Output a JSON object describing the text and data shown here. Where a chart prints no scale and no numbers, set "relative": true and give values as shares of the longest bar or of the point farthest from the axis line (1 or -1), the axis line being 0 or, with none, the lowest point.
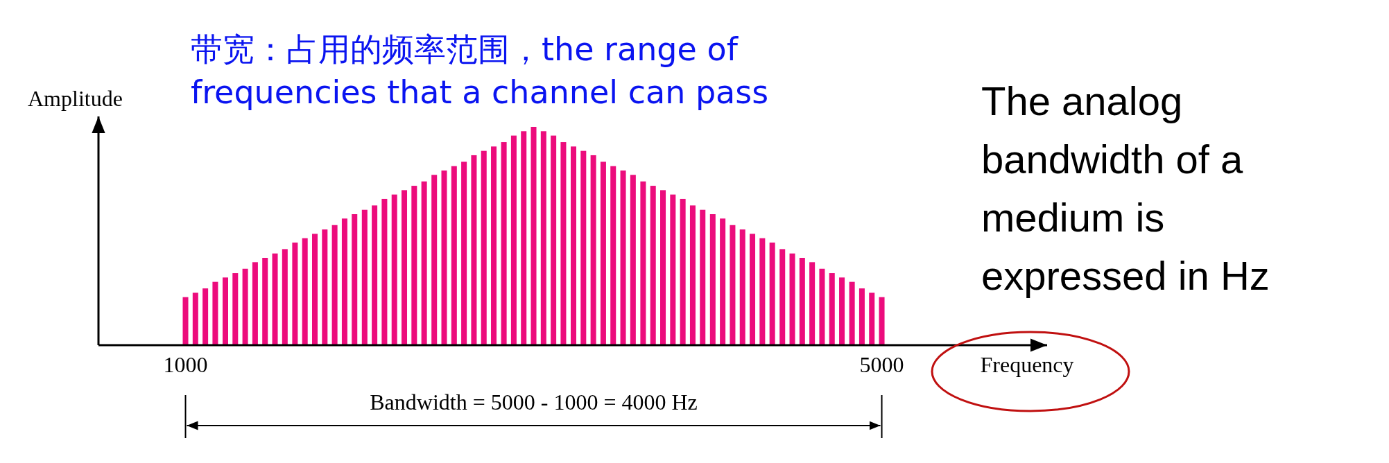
{
  "chart_data": {
    "type": "bar",
    "title": "带宽：占用的频率范围，the range of frequencies that a channel can pass",
    "xlabel": "Frequency",
    "ylabel": "Amplitude",
    "relative": true,
    "color": "#ec0c7c",
    "x": [
      1000,
      1057,
      1114,
      1171,
      1229,
      1286,
      1343,
      1400,
      1457,
      1514,
      1571,
      1629,
      1686,
      1743,
      1800,
      1857,
      1914,
      1971,
      2029,
      2086,
      2143,
      2200,
      2257,
      2314,
      2371,
      2429,
      2486,
      2543,
      2600,
      2657,
      2714,
      2771,
      2829,
      2886,
      2943,
      3000,
      3057,
      3114,
      3171,
      3229,
      3286,
      3343,
      3400,
      3457,
      3514,
      3571,
      3629,
      3686,
      3743,
      3800,
      3857,
      3914,
      3971,
      4029,
      4086,
      4143,
      4200,
      4257,
      4314,
      4371,
      4429,
      4486,
      4543,
      4600,
      4657,
      4714,
      4771,
      4829,
      4886,
      4943,
      5000
    ],
    "values": [
      0.22,
      0.24,
      0.26,
      0.29,
      0.31,
      0.33,
      0.35,
      0.38,
      0.4,
      0.42,
      0.44,
      0.47,
      0.49,
      0.51,
      0.53,
      0.55,
      0.58,
      0.6,
      0.62,
      0.64,
      0.67,
      0.69,
      0.71,
      0.73,
      0.75,
      0.78,
      0.8,
      0.82,
      0.84,
      0.87,
      0.89,
      0.91,
      0.93,
      0.96,
      0.98,
      1,
      0.98,
      0.96,
      0.93,
      0.91,
      0.89,
      0.87,
      0.84,
      0.82,
      0.8,
      0.78,
      0.75,
      0.73,
      0.71,
      0.69,
      0.67,
      0.64,
      0.62,
      0.6,
      0.58,
      0.55,
      0.53,
      0.51,
      0.49,
      0.47,
      0.44,
      0.42,
      0.4,
      0.38,
      0.35,
      0.33,
      0.31,
      0.29,
      0.26,
      0.24,
      0.22
    ],
    "xlim": [
      500,
      5950
    ],
    "xticks": [
      1000,
      5000
    ],
    "annotations": [
      "Bandwidth = 5000 - 1000 = 4000 Hz",
      "The analog bandwidth of a medium is expressed in Hz"
    ]
  }
}
